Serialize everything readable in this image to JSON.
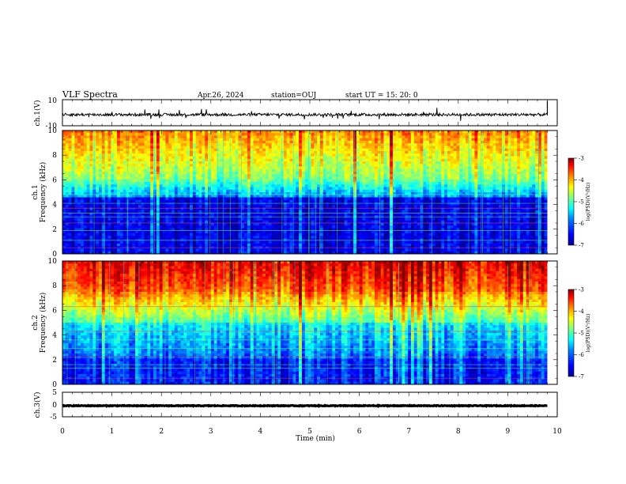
{
  "header": {
    "title": "VLF Spectra",
    "date": "Apr.26, 2024",
    "station": "station=OUJ",
    "start": "start  UT =   15: 20: 0"
  },
  "chart_data": [
    {
      "type": "line",
      "name": "ch1-waveform",
      "ylabel": "ch.1(V)",
      "ylim": [
        -10,
        10
      ],
      "yticks": [
        "10",
        "-10"
      ],
      "xlim": [
        0,
        10
      ],
      "baseline": -1.5,
      "note": "noisy waveform around baseline with occasional spikes; trace ends near 9.8 min"
    },
    {
      "type": "heatmap",
      "name": "ch1-spectrogram",
      "ylabel": "ch.1\nFrequency (kHz)",
      "ylabel_lines": [
        "ch.1",
        "Frequency  (kHz)"
      ],
      "ylim": [
        0,
        10
      ],
      "yticks": [
        "0",
        "2",
        "4",
        "6",
        "8",
        "10"
      ],
      "xlim": [
        0,
        10
      ],
      "colorbar": {
        "label": "log(PSD)(V²/Hz)",
        "range": [
          -7,
          -3
        ],
        "ticks": [
          "-3",
          "-4",
          "-5",
          "-6",
          "-7"
        ],
        "colors": [
          "#00008f",
          "#0000ff",
          "#0080ff",
          "#00ffff",
          "#80ff80",
          "#ffff00",
          "#ff8000",
          "#ff0000",
          "#800000"
        ]
      }
    },
    {
      "type": "heatmap",
      "name": "ch2-spectrogram",
      "ylabel": "ch.2\nFrequency (kHz)",
      "ylabel_lines": [
        "ch.2",
        "Frequency  (kHz)"
      ],
      "ylim": [
        0,
        10
      ],
      "yticks": [
        "0",
        "2",
        "4",
        "6",
        "8",
        "10"
      ],
      "xlim": [
        0,
        10
      ],
      "colorbar": {
        "label": "log(PSD)(V²/Hz)",
        "range": [
          -7,
          -3
        ],
        "ticks": [
          "-3",
          "-4",
          "-5",
          "-6",
          "-7"
        ],
        "colors": [
          "#00008f",
          "#0000ff",
          "#0080ff",
          "#00ffff",
          "#80ff80",
          "#ffff00",
          "#ff8000",
          "#ff0000",
          "#800000"
        ]
      }
    },
    {
      "type": "line",
      "name": "ch3-waveform",
      "ylabel": "ch.3(V)",
      "ylim": [
        -5,
        5
      ],
      "yticks": [
        "5",
        "0",
        "-5"
      ],
      "xlim": [
        0,
        10
      ],
      "baseline": -0.5,
      "xlabel": "Time  (min)",
      "xticks": [
        "0",
        "1",
        "2",
        "3",
        "4",
        "5",
        "6",
        "7",
        "8",
        "9",
        "10"
      ]
    }
  ]
}
